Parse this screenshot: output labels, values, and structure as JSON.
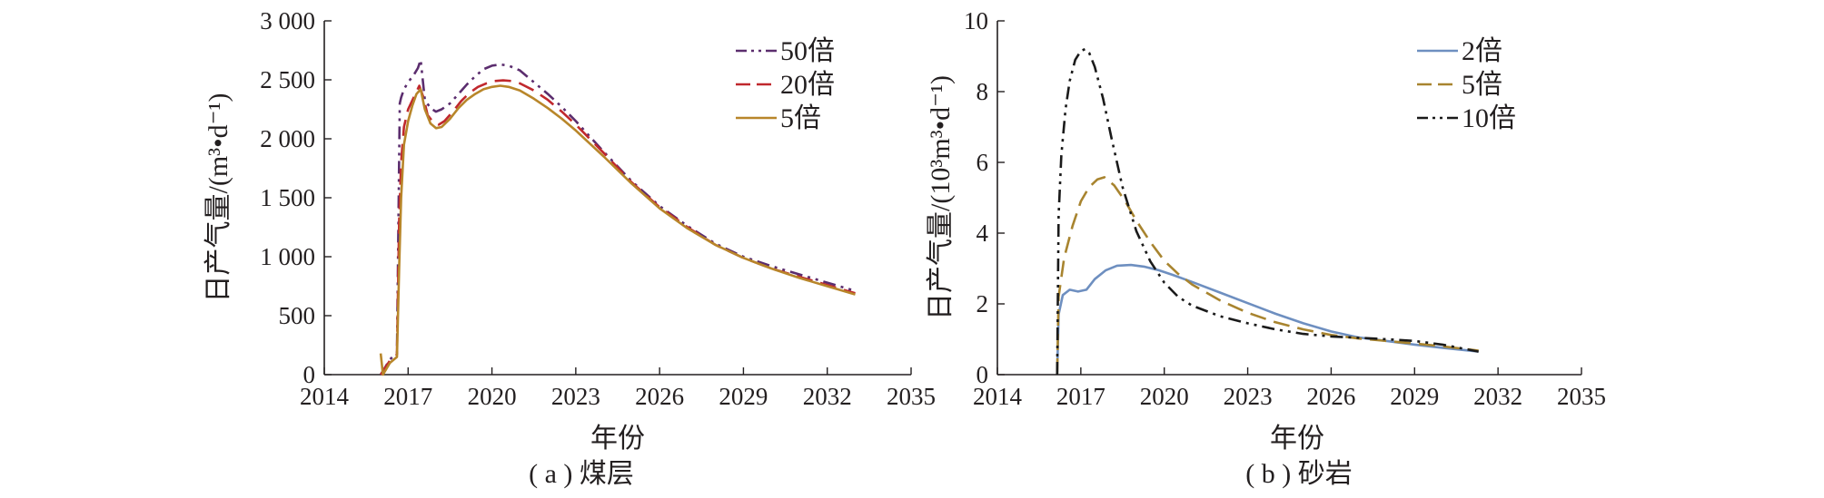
{
  "chart_data": [
    {
      "type": "line",
      "caption": "( a ) 煤层",
      "xlabel": "年份",
      "ylabel": "日产气量/(m³•d⁻¹)",
      "xlim": [
        2014,
        2035
      ],
      "ylim": [
        0,
        3000
      ],
      "xticks": [
        2014,
        2017,
        2020,
        2023,
        2026,
        2029,
        2032,
        2035
      ],
      "xtick_labels": [
        "2014",
        "2017",
        "2020",
        "2023",
        "2026",
        "2029",
        "2032",
        "2035"
      ],
      "yticks": [
        0,
        500,
        1000,
        1500,
        2000,
        2500,
        3000
      ],
      "ytick_labels": [
        "0",
        "500",
        "1 000",
        "1 500",
        "2 000",
        "2 500",
        "3 000"
      ],
      "legend_position": "top-right",
      "series": [
        {
          "name": "50倍",
          "color": "#5b2d6e",
          "dash": "dashdotdot",
          "x": [
            2016.02,
            2016.35,
            2016.6,
            2016.7,
            2016.75,
            2016.85,
            2017.0,
            2017.2,
            2017.35,
            2017.45,
            2017.6,
            2017.8,
            2018.0,
            2018.2,
            2018.5,
            2018.8,
            2019.1,
            2019.4,
            2019.7,
            2020.0,
            2020.3,
            2020.6,
            2021.0,
            2021.5,
            2022.0,
            2022.5,
            2023.0,
            2023.5,
            2024.0,
            2025.0,
            2026.0,
            2027.0,
            2028.0,
            2029.0,
            2030.0,
            2031.0,
            2032.0,
            2033.0
          ],
          "y": [
            0,
            130,
            180,
            2300,
            2350,
            2420,
            2480,
            2540,
            2600,
            2670,
            2330,
            2260,
            2230,
            2250,
            2300,
            2380,
            2460,
            2530,
            2590,
            2620,
            2630,
            2620,
            2580,
            2480,
            2380,
            2270,
            2150,
            2020,
            1890,
            1640,
            1430,
            1260,
            1110,
            1000,
            920,
            850,
            780,
            710
          ]
        },
        {
          "name": "20倍",
          "color": "#c0282d",
          "dash": "dashed",
          "x": [
            2016.02,
            2016.35,
            2016.6,
            2016.68,
            2016.75,
            2016.85,
            2017.0,
            2017.2,
            2017.4,
            2017.55,
            2017.7,
            2017.9,
            2018.1,
            2018.3,
            2018.6,
            2018.9,
            2019.2,
            2019.5,
            2019.8,
            2020.1,
            2020.4,
            2020.7,
            2021.0,
            2021.5,
            2022.0,
            2022.5,
            2023.0,
            2023.5,
            2024.0,
            2025.0,
            2026.0,
            2027.0,
            2028.0,
            2029.0,
            2030.0,
            2031.0,
            2032.0,
            2033.0
          ],
          "y": [
            0,
            120,
            170,
            1300,
            1800,
            2100,
            2250,
            2350,
            2450,
            2350,
            2200,
            2140,
            2120,
            2150,
            2230,
            2320,
            2390,
            2440,
            2470,
            2490,
            2495,
            2490,
            2470,
            2410,
            2330,
            2230,
            2120,
            2000,
            1880,
            1630,
            1420,
            1250,
            1100,
            990,
            900,
            830,
            760,
            690
          ]
        },
        {
          "name": "5倍",
          "color": "#b8862a",
          "dash": "solid",
          "x": [
            2016.02,
            2016.1,
            2016.35,
            2016.6,
            2016.68,
            2016.75,
            2016.85,
            2017.0,
            2017.15,
            2017.3,
            2017.45,
            2017.6,
            2017.8,
            2018.0,
            2018.2,
            2018.5,
            2018.8,
            2019.1,
            2019.4,
            2019.7,
            2020.0,
            2020.3,
            2020.6,
            2021.0,
            2021.5,
            2022.0,
            2022.5,
            2023.0,
            2023.5,
            2024.0,
            2025.0,
            2026.0,
            2027.0,
            2028.0,
            2029.0,
            2030.0,
            2031.0,
            2032.0,
            2033.0
          ],
          "y": [
            180,
            0,
            100,
            150,
            900,
            1500,
            1950,
            2150,
            2280,
            2380,
            2420,
            2250,
            2130,
            2090,
            2100,
            2170,
            2260,
            2330,
            2380,
            2420,
            2440,
            2450,
            2440,
            2410,
            2340,
            2260,
            2170,
            2070,
            1960,
            1850,
            1620,
            1410,
            1240,
            1100,
            990,
            900,
            820,
            750,
            680
          ]
        }
      ]
    },
    {
      "type": "line",
      "caption": "( b ) 砂岩",
      "xlabel": "年份",
      "ylabel": "日产气量/(10³m³•d⁻¹)",
      "xlim": [
        2014,
        2035
      ],
      "ylim": [
        0,
        10
      ],
      "xticks": [
        2014,
        2017,
        2020,
        2023,
        2026,
        2029,
        2032,
        2035
      ],
      "xtick_labels": [
        "2014",
        "2017",
        "2020",
        "2023",
        "2026",
        "2029",
        "2032",
        "2035"
      ],
      "yticks": [
        0,
        2,
        4,
        6,
        8,
        10
      ],
      "ytick_labels": [
        "0",
        "2",
        "4",
        "6",
        "8",
        "10"
      ],
      "legend_position": "top-right",
      "series": [
        {
          "name": "2倍",
          "color": "#6e8fc0",
          "dash": "solid",
          "x": [
            2016.15,
            2016.2,
            2016.35,
            2016.6,
            2016.9,
            2017.2,
            2017.5,
            2017.9,
            2018.3,
            2018.8,
            2019.3,
            2019.8,
            2020.3,
            2021.0,
            2022.0,
            2023.0,
            2024.0,
            2025.0,
            2026.0,
            2027.0,
            2028.0,
            2029.0,
            2030.0,
            2031.3
          ],
          "y": [
            0,
            1.7,
            2.25,
            2.4,
            2.35,
            2.4,
            2.7,
            2.95,
            3.08,
            3.1,
            3.05,
            2.95,
            2.82,
            2.62,
            2.32,
            2.02,
            1.72,
            1.45,
            1.22,
            1.05,
            0.95,
            0.85,
            0.76,
            0.65
          ]
        },
        {
          "name": "5倍",
          "color": "#a8842f",
          "dash": "dashed",
          "x": [
            2016.15,
            2016.2,
            2016.4,
            2016.7,
            2017.0,
            2017.3,
            2017.6,
            2017.85,
            2018.2,
            2018.6,
            2019.0,
            2019.5,
            2020.0,
            2020.5,
            2021.0,
            2022.0,
            2023.0,
            2024.0,
            2025.0,
            2026.0,
            2027.0,
            2028.0,
            2029.0,
            2030.0,
            2031.3
          ],
          "y": [
            0,
            2.2,
            3.3,
            4.2,
            4.9,
            5.3,
            5.52,
            5.58,
            5.35,
            4.9,
            4.35,
            3.75,
            3.22,
            2.85,
            2.55,
            2.1,
            1.75,
            1.48,
            1.28,
            1.12,
            1.02,
            0.95,
            0.88,
            0.8,
            0.68
          ]
        },
        {
          "name": "10倍",
          "color": "#1a1a1a",
          "dash": "dashdotdot",
          "x": [
            2016.15,
            2016.2,
            2016.3,
            2016.45,
            2016.6,
            2016.8,
            2017.0,
            2017.15,
            2017.3,
            2017.5,
            2017.8,
            2018.1,
            2018.5,
            2019.0,
            2019.5,
            2020.0,
            2020.5,
            2021.0,
            2022.0,
            2023.0,
            2024.0,
            2025.0,
            2026.0,
            2027.0,
            2028.0,
            2029.0,
            2030.0,
            2031.3
          ],
          "y": [
            0,
            4.5,
            6.2,
            7.5,
            8.3,
            8.9,
            9.15,
            9.2,
            9.1,
            8.7,
            7.8,
            6.7,
            5.3,
            4.05,
            3.2,
            2.6,
            2.2,
            1.95,
            1.65,
            1.45,
            1.28,
            1.15,
            1.08,
            1.04,
            1.0,
            0.95,
            0.85,
            0.65
          ]
        }
      ]
    }
  ]
}
